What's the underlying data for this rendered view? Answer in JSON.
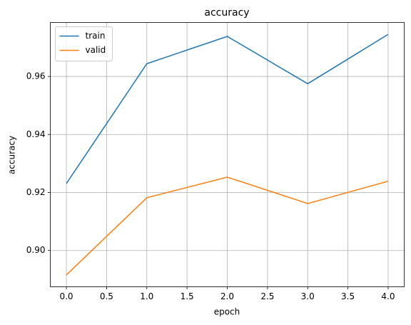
{
  "chart_data": {
    "type": "line",
    "title": "accuracy",
    "xlabel": "epoch",
    "ylabel": "accuracy",
    "x": [
      0,
      1,
      2,
      3,
      4
    ],
    "series": [
      {
        "name": "train",
        "color": "#1f77b4",
        "values": [
          0.9231,
          0.9644,
          0.9738,
          0.9575,
          0.9745
        ]
      },
      {
        "name": "valid",
        "color": "#ff7f0e",
        "values": [
          0.8916,
          0.9182,
          0.9253,
          0.9162,
          0.9239
        ]
      }
    ],
    "xlim": [
      -0.2,
      4.2
    ],
    "xticks": [
      {
        "value": 0,
        "label": "0.0"
      },
      {
        "value": 0.5,
        "label": "0.5"
      },
      {
        "value": 1,
        "label": "1.0"
      },
      {
        "value": 1.5,
        "label": "1.5"
      },
      {
        "value": 2,
        "label": "2.0"
      },
      {
        "value": 2.5,
        "label": "2.5"
      },
      {
        "value": 3,
        "label": "3.0"
      },
      {
        "value": 3.5,
        "label": "3.5"
      },
      {
        "value": 4,
        "label": "4.0"
      }
    ],
    "ylim": [
      0.8875,
      0.9786
    ],
    "yticks": [
      {
        "value": 0.9,
        "label": "0.90"
      },
      0.92,
      0.94,
      0.96
    ],
    "grid": true,
    "legend": "upper left"
  }
}
